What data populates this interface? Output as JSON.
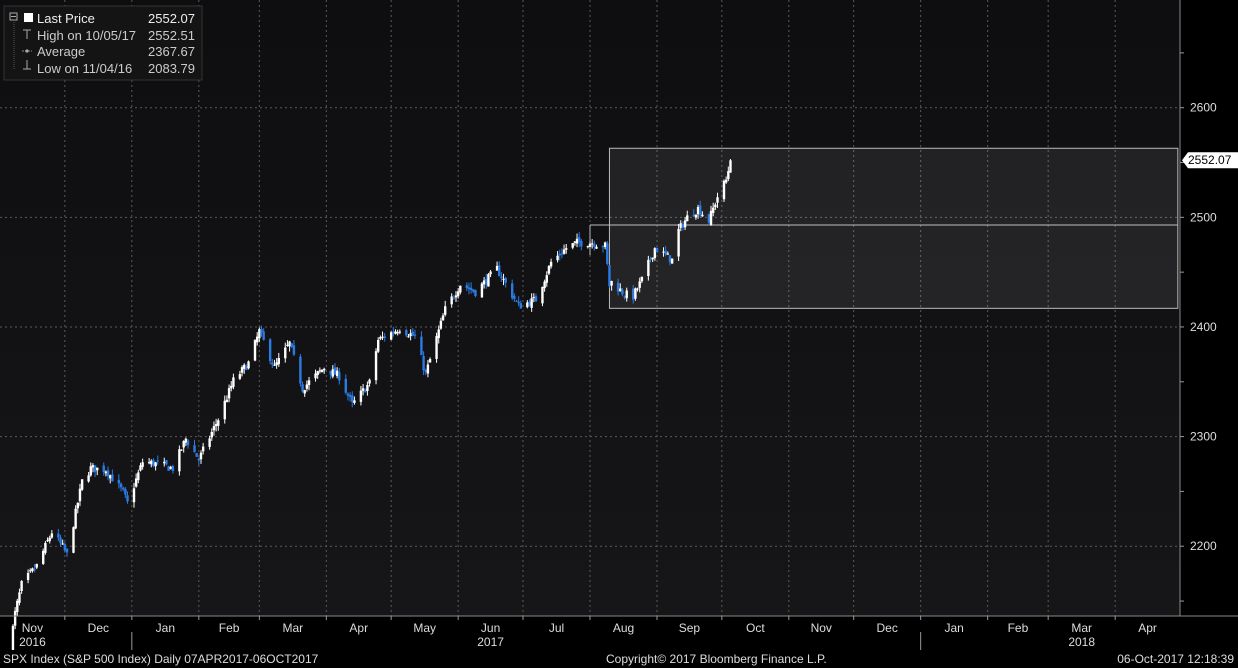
{
  "legend": {
    "last_price_label": "Last Price",
    "last_price_value": "2552.07",
    "high_label": "High on 10/05/17",
    "high_value": "2552.51",
    "average_label": "Average",
    "average_value": "2367.67",
    "low_label": "Low on 11/04/16",
    "low_value": "2083.79"
  },
  "footer": {
    "left": "SPX Index (S&P 500 Index)  Daily 07APR2017-06OCT2017",
    "center": "Copyright© 2017 Bloomberg Finance L.P.",
    "right": "06-Oct-2017 12:18:39"
  },
  "price_tag": "2552.07",
  "colors": {
    "background": "#000000",
    "plot_background_top": "#0e0e10",
    "plot_background_bottom": "#161619",
    "up_candle": "#ffffff",
    "down_candle": "#2b7be4",
    "grid": "#5a5a5a",
    "axis_text": "#dddddd"
  },
  "chart_data": {
    "type": "candlestick",
    "y_ticks": [
      2200,
      2300,
      2400,
      2500,
      2600
    ],
    "ylim": [
      2140,
      2680
    ],
    "x_months": [
      {
        "label": "Nov",
        "year": "2016"
      },
      {
        "label": "Dec"
      },
      {
        "label": "Jan"
      },
      {
        "label": "Feb"
      },
      {
        "label": "Mar"
      },
      {
        "label": "Apr"
      },
      {
        "label": "May"
      },
      {
        "label": "Jun",
        "year": "2017"
      },
      {
        "label": "Jul"
      },
      {
        "label": "Aug"
      },
      {
        "label": "Sep"
      },
      {
        "label": "Oct"
      },
      {
        "label": "Nov"
      },
      {
        "label": "Dec"
      },
      {
        "label": "Jan"
      },
      {
        "label": "Feb"
      },
      {
        "label": "Mar",
        "year": "2018"
      },
      {
        "label": "Apr"
      }
    ],
    "grid": true,
    "legend_position": "top-left",
    "zones": [
      {
        "from": "2017-08-01",
        "to": "2018-04-30",
        "low": 2493,
        "high": 2493,
        "kind": "line"
      },
      {
        "from": "2017-08-10",
        "to": "2018-04-30",
        "low": 2417,
        "high": 2563,
        "kind": "box"
      }
    ],
    "close_anchors": [
      [
        "2016-11-04",
        2085
      ],
      [
        "2016-11-08",
        2139
      ],
      [
        "2016-11-11",
        2165
      ],
      [
        "2016-11-18",
        2182
      ],
      [
        "2016-11-25",
        2213
      ],
      [
        "2016-11-30",
        2199
      ],
      [
        "2016-12-02",
        2192
      ],
      [
        "2016-12-09",
        2259
      ],
      [
        "2016-12-13",
        2271
      ],
      [
        "2016-12-20",
        2270
      ],
      [
        "2016-12-28",
        2249
      ],
      [
        "2016-12-30",
        2239
      ],
      [
        "2017-01-06",
        2277
      ],
      [
        "2017-01-13",
        2275
      ],
      [
        "2017-01-20",
        2271
      ],
      [
        "2017-01-26",
        2298
      ],
      [
        "2017-02-01",
        2279
      ],
      [
        "2017-02-10",
        2316
      ],
      [
        "2017-02-17",
        2351
      ],
      [
        "2017-02-24",
        2367
      ],
      [
        "2017-03-01",
        2396
      ],
      [
        "2017-03-08",
        2363
      ],
      [
        "2017-03-15",
        2385
      ],
      [
        "2017-03-21",
        2344
      ],
      [
        "2017-03-31",
        2363
      ],
      [
        "2017-04-07",
        2355
      ],
      [
        "2017-04-13",
        2329
      ],
      [
        "2017-04-21",
        2349
      ],
      [
        "2017-04-25",
        2388
      ],
      [
        "2017-05-05",
        2399
      ],
      [
        "2017-05-12",
        2391
      ],
      [
        "2017-05-17",
        2357
      ],
      [
        "2017-05-26",
        2416
      ],
      [
        "2017-06-02",
        2439
      ],
      [
        "2017-06-09",
        2432
      ],
      [
        "2017-06-19",
        2453
      ],
      [
        "2017-06-29",
        2419
      ],
      [
        "2017-07-07",
        2425
      ],
      [
        "2017-07-14",
        2459
      ],
      [
        "2017-07-21",
        2472
      ],
      [
        "2017-07-26",
        2477
      ],
      [
        "2017-08-02",
        2477
      ],
      [
        "2017-08-08",
        2474
      ],
      [
        "2017-08-10",
        2438
      ],
      [
        "2017-08-11",
        2441
      ],
      [
        "2017-08-17",
        2430
      ],
      [
        "2017-08-21",
        2428
      ],
      [
        "2017-08-25",
        2443
      ],
      [
        "2017-08-31",
        2472
      ],
      [
        "2017-09-08",
        2461
      ],
      [
        "2017-09-11",
        2488
      ],
      [
        "2017-09-15",
        2500
      ],
      [
        "2017-09-20",
        2508
      ],
      [
        "2017-09-25",
        2497
      ],
      [
        "2017-09-29",
        2519
      ],
      [
        "2017-10-03",
        2534
      ],
      [
        "2017-10-05",
        2552
      ]
    ]
  }
}
